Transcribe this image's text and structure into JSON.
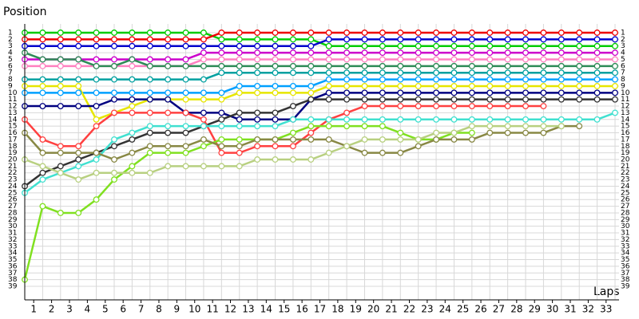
{
  "chart_data": {
    "type": "line",
    "y_label": "Position",
    "x_label": "Laps",
    "x": [
      0,
      1,
      2,
      3,
      4,
      5,
      6,
      7,
      8,
      9,
      10,
      11,
      12,
      13,
      14,
      15,
      16,
      17,
      18,
      19,
      20,
      21,
      22,
      23,
      24,
      25,
      26,
      27,
      28,
      29,
      30,
      31,
      32,
      33
    ],
    "xlim": [
      0,
      33
    ],
    "ylim": [
      1,
      39
    ],
    "y_inverted": true,
    "grid": true,
    "marker": "circle",
    "xticks": [
      1,
      2,
      3,
      4,
      5,
      6,
      7,
      8,
      9,
      10,
      11,
      12,
      13,
      14,
      15,
      16,
      17,
      18,
      19,
      20,
      21,
      22,
      23,
      24,
      25,
      26,
      27,
      28,
      29,
      30,
      31,
      32,
      33
    ],
    "yticks": [
      1,
      2,
      3,
      4,
      5,
      6,
      7,
      8,
      9,
      10,
      11,
      12,
      13,
      14,
      15,
      16,
      17,
      18,
      19,
      20,
      21,
      22,
      23,
      24,
      25,
      26,
      27,
      28,
      29,
      30,
      31,
      32,
      33,
      34,
      35,
      36,
      37,
      38,
      39
    ],
    "series": [
      {
        "color": "#00cc00",
        "values": [
          1,
          1,
          1,
          1,
          1,
          1,
          1,
          1,
          1,
          1,
          1,
          2,
          2,
          2,
          2,
          2,
          2,
          3,
          3,
          3,
          3,
          3,
          3,
          3,
          3,
          3,
          3,
          3,
          3,
          3,
          3,
          3,
          3,
          3
        ]
      },
      {
        "color": "#ee0000",
        "values": [
          2,
          2,
          2,
          2,
          2,
          2,
          2,
          2,
          2,
          2,
          2,
          1,
          1,
          1,
          1,
          1,
          1,
          1,
          1,
          1,
          1,
          1,
          1,
          1,
          1,
          1,
          1,
          1,
          1,
          1,
          1,
          1,
          1,
          1
        ]
      },
      {
        "color": "#0000cc",
        "values": [
          3,
          3,
          3,
          3,
          3,
          3,
          3,
          3,
          3,
          3,
          3,
          3,
          3,
          3,
          3,
          3,
          3,
          2,
          2,
          2,
          2,
          2,
          2,
          2,
          2,
          2,
          2,
          2,
          2,
          2,
          2,
          2,
          2,
          2
        ]
      },
      {
        "color": "#cc00cc",
        "values": [
          5,
          5,
          5,
          5,
          5,
          5,
          5,
          5,
          5,
          5,
          4,
          4,
          4,
          4,
          4,
          4,
          4,
          4,
          4,
          4,
          4,
          4,
          4,
          4,
          4,
          4,
          4,
          4,
          4,
          4,
          4,
          4,
          4,
          4
        ]
      },
      {
        "color": "#ff80c0",
        "values": [
          6,
          6,
          6,
          6,
          6,
          6,
          6,
          6,
          6,
          6,
          5,
          5,
          5,
          5,
          5,
          5,
          5,
          5,
          5,
          5,
          5,
          5,
          5,
          5,
          5,
          5,
          5,
          5,
          5,
          5,
          5,
          5,
          5,
          5
        ]
      },
      {
        "color": "#2e8b57",
        "values": [
          4,
          5,
          5,
          5,
          6,
          6,
          5,
          6,
          6,
          6,
          6,
          6,
          6,
          6,
          6,
          6,
          6,
          6,
          6,
          6,
          6,
          6,
          6,
          6,
          6,
          6,
          6,
          6,
          6,
          6,
          6,
          6,
          6,
          6
        ]
      },
      {
        "color": "#00a0a0",
        "values": [
          8,
          8,
          8,
          8,
          8,
          8,
          8,
          8,
          8,
          8,
          8,
          7,
          7,
          7,
          7,
          7,
          7,
          7,
          7,
          7,
          7,
          7,
          7,
          7,
          7,
          7,
          7,
          7,
          7,
          7,
          7,
          7,
          7,
          7
        ]
      },
      {
        "color": "#00a0ff",
        "values": [
          10,
          10,
          10,
          10,
          10,
          10,
          10,
          10,
          10,
          10,
          10,
          10,
          9,
          9,
          9,
          9,
          9,
          8,
          8,
          8,
          8,
          8,
          8,
          8,
          8,
          8,
          8,
          8,
          8,
          8,
          8,
          8,
          8,
          8
        ]
      },
      {
        "color": "#e6e600",
        "values": [
          9,
          9,
          9,
          9,
          14,
          13,
          12,
          11,
          11,
          11,
          11,
          11,
          10,
          10,
          10,
          10,
          10,
          9,
          9,
          9,
          9,
          9,
          9,
          9,
          9,
          9,
          9,
          9,
          9,
          9,
          9,
          9,
          9,
          9
        ]
      },
      {
        "color": "#000080",
        "values": [
          12,
          12,
          12,
          12,
          12,
          11,
          11,
          11,
          11,
          13,
          13,
          13,
          14,
          14,
          14,
          14,
          11,
          10,
          10,
          10,
          10,
          10,
          10,
          10,
          10,
          10,
          10,
          10,
          10,
          10,
          10,
          10,
          10,
          10
        ]
      },
      {
        "color": "#333333",
        "values": [
          24,
          22,
          21,
          20,
          19,
          18,
          17,
          16,
          16,
          16,
          15,
          14,
          13,
          13,
          13,
          12,
          11,
          11,
          11,
          11,
          11,
          11,
          11,
          11,
          11,
          11,
          11,
          11,
          11,
          11,
          11,
          11,
          11,
          11
        ]
      },
      {
        "color": "#ff4040",
        "values": [
          14,
          17,
          18,
          18,
          15,
          13,
          13,
          13,
          13,
          13,
          14,
          19,
          19,
          18,
          18,
          18,
          16,
          14,
          13,
          12,
          12,
          12,
          12,
          12,
          12,
          12,
          12,
          12,
          12,
          12,
          null,
          null,
          null,
          null
        ]
      },
      {
        "color": "#40e0d0",
        "values": [
          25,
          23,
          22,
          21,
          20,
          17,
          16,
          15,
          15,
          15,
          15,
          15,
          15,
          15,
          15,
          14,
          14,
          14,
          14,
          14,
          14,
          14,
          14,
          14,
          14,
          14,
          14,
          14,
          14,
          14,
          14,
          14,
          14,
          13
        ]
      },
      {
        "color": "#80e020",
        "values": [
          38,
          27,
          28,
          28,
          26,
          23,
          21,
          19,
          19,
          19,
          18,
          17,
          17,
          17,
          17,
          16,
          15,
          15,
          15,
          15,
          15,
          16,
          17,
          17,
          16,
          16,
          null,
          null,
          null,
          null,
          null,
          null,
          null,
          null
        ]
      },
      {
        "color": "#888844",
        "values": [
          16,
          19,
          19,
          19,
          19,
          20,
          19,
          18,
          18,
          18,
          17,
          18,
          18,
          17,
          17,
          17,
          17,
          17,
          18,
          19,
          19,
          19,
          18,
          17,
          17,
          17,
          16,
          16,
          16,
          16,
          15,
          15,
          null,
          null
        ]
      },
      {
        "color": "#b8d080",
        "values": [
          20,
          21,
          22,
          23,
          22,
          22,
          22,
          22,
          21,
          21,
          21,
          21,
          21,
          20,
          20,
          20,
          20,
          19,
          18,
          17,
          17,
          17,
          17,
          16,
          16,
          15,
          15,
          15,
          15,
          15,
          15,
          null,
          null,
          null
        ]
      }
    ]
  }
}
